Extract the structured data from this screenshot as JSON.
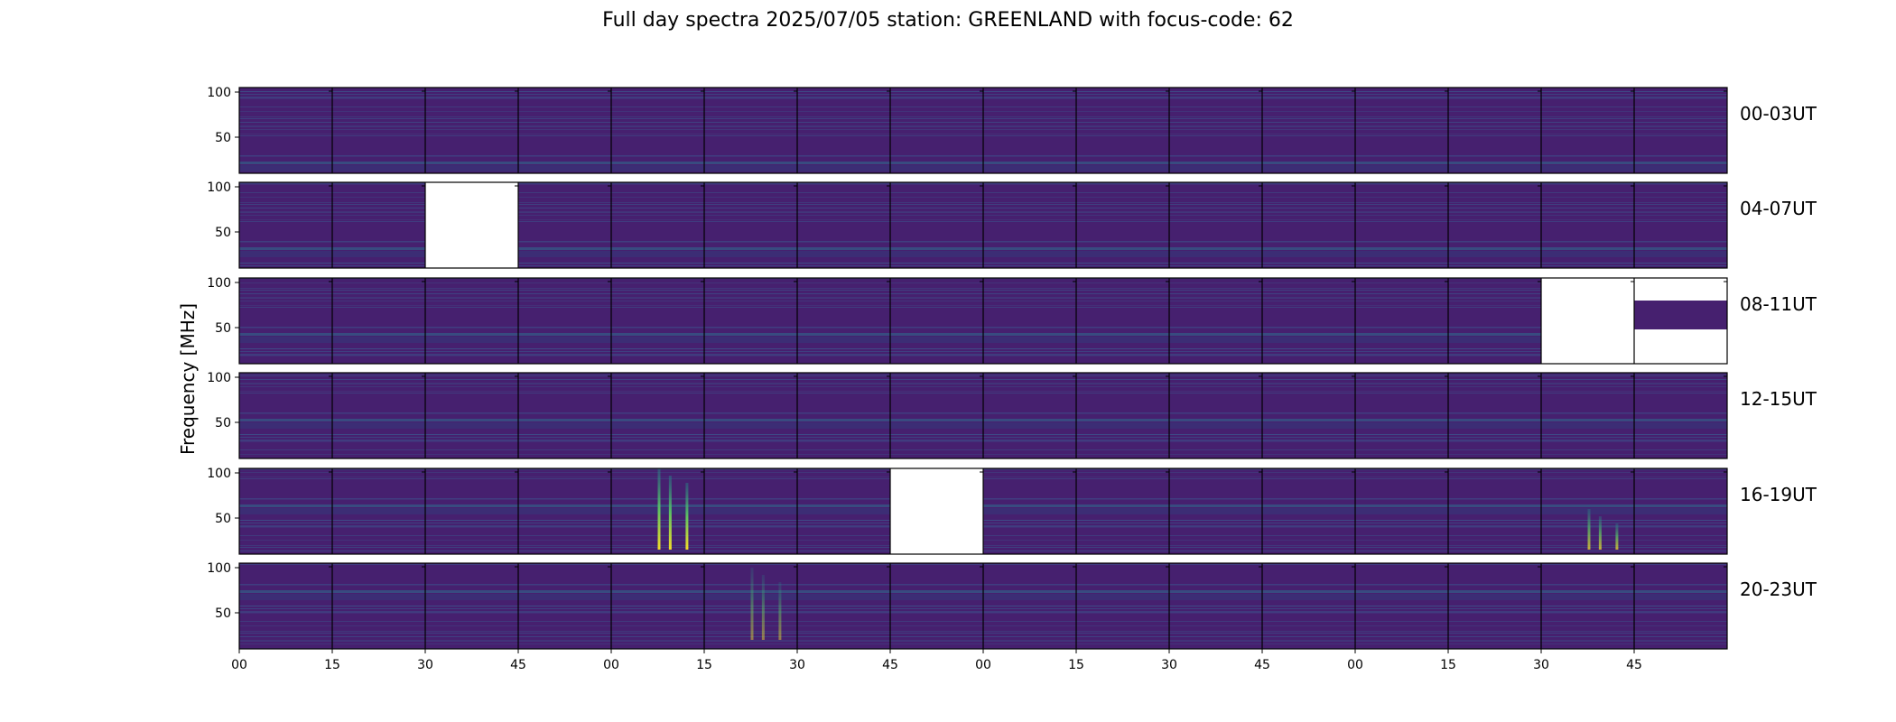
{
  "chart_data": {
    "type": "heatmap",
    "title": "Full day spectra 2025/07/05 station: GREENLAND with focus-code: 62",
    "ylabel": "Frequency [MHz]",
    "xlabel": "",
    "ylim": [
      10,
      105
    ],
    "y_ticks": [
      "100",
      "50"
    ],
    "x_ticks": [
      "00",
      "15",
      "30",
      "45",
      "00",
      "15",
      "30",
      "45",
      "00",
      "15",
      "30",
      "45",
      "00",
      "15",
      "30",
      "45"
    ],
    "panels_per_row": 16,
    "minutes_per_panel": 15,
    "rows": [
      {
        "label": "00-03UT",
        "missing_panels": [],
        "partial_panels": []
      },
      {
        "label": "04-07UT",
        "missing_panels": [
          3
        ],
        "partial_panels": []
      },
      {
        "label": "08-11UT",
        "missing_panels": [
          15
        ],
        "partial_panels": [
          {
            "index": 16,
            "freq_range": [
              48,
              80
            ]
          }
        ]
      },
      {
        "label": "12-15UT",
        "missing_panels": [],
        "partial_panels": []
      },
      {
        "label": "16-19UT",
        "missing_panels": [
          8
        ],
        "partial_panels": []
      },
      {
        "label": "20-23UT",
        "missing_panels": [],
        "partial_panels": []
      }
    ],
    "bursts": [
      {
        "row": 5,
        "panel": 5,
        "freq_range": [
          15,
          105
        ],
        "intensity": "high"
      },
      {
        "row": 5,
        "panel": 15,
        "freq_range": [
          15,
          60
        ],
        "intensity": "medium"
      },
      {
        "row": 6,
        "panel": 6,
        "freq_range": [
          20,
          100
        ],
        "intensity": "low"
      }
    ],
    "colormap": [
      "#440154",
      "#3b528b",
      "#21918c",
      "#5ec962",
      "#fde725"
    ],
    "background_color": "#46206f"
  }
}
